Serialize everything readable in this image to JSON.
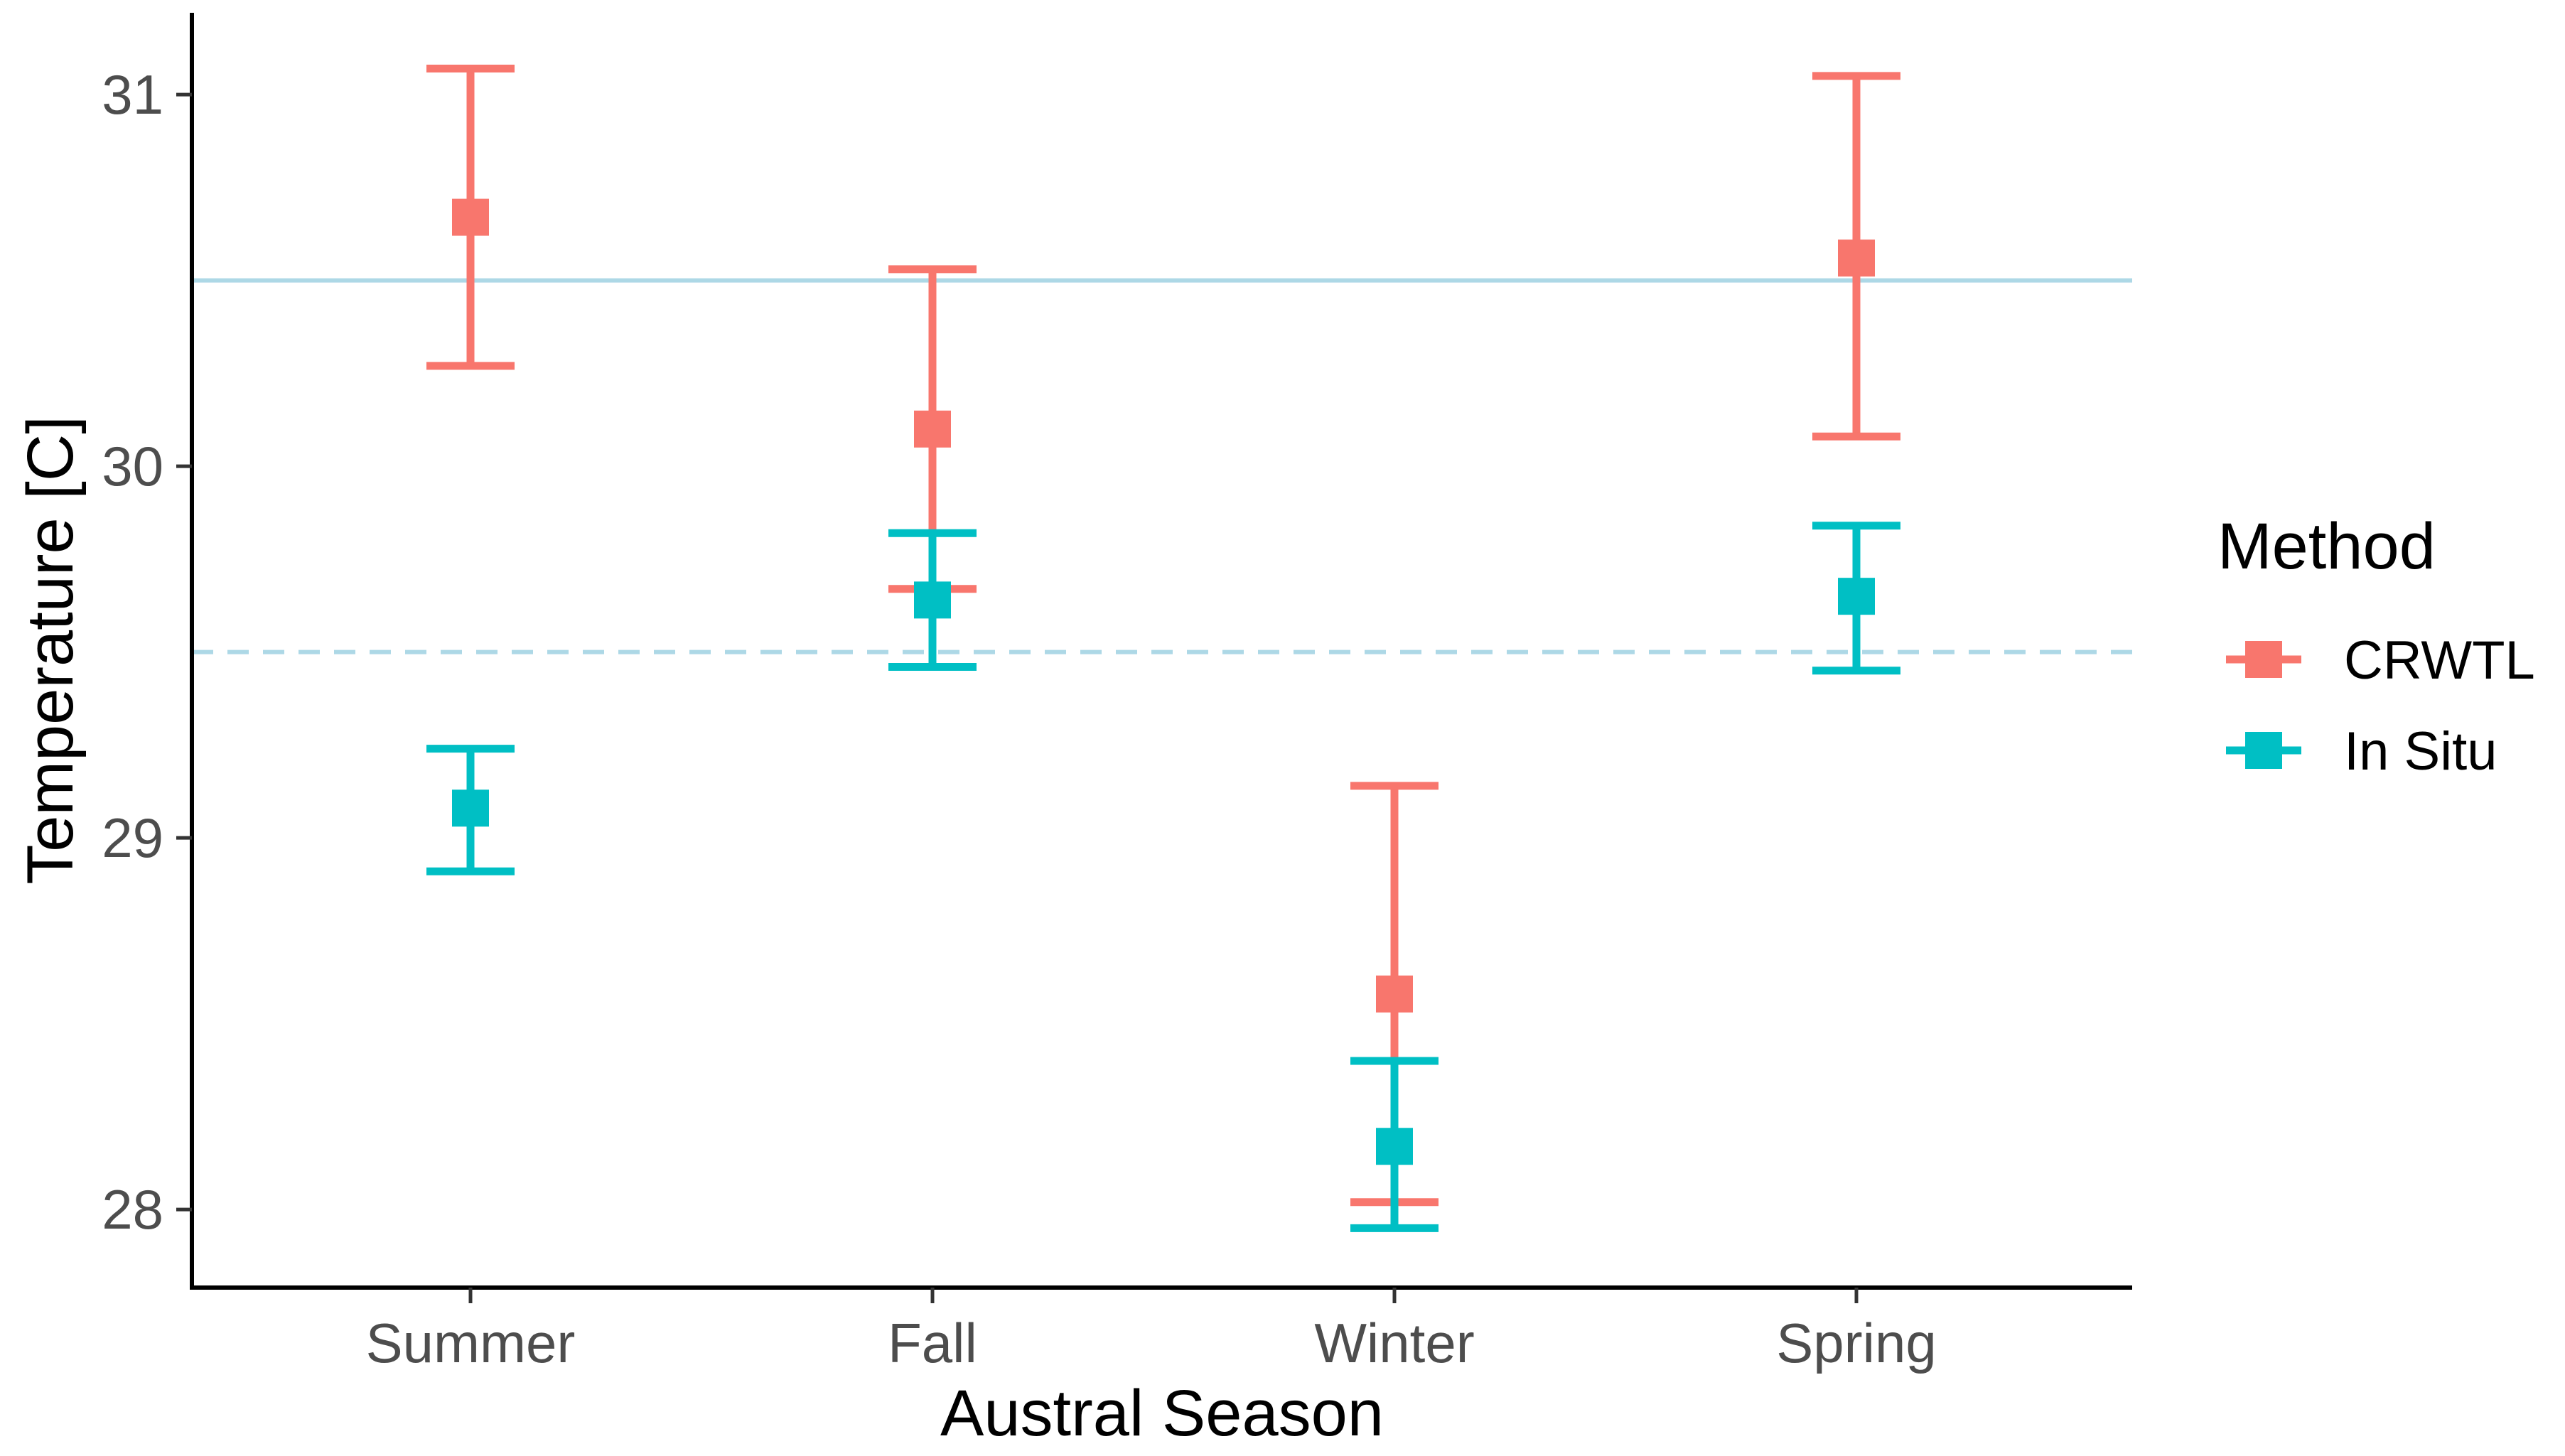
{
  "chart_data": {
    "type": "scatter",
    "subtype": "point-with-error-bars",
    "xlabel": "Austral Season",
    "ylabel": "Temperature [C]",
    "categories": [
      "Summer",
      "Fall",
      "Winter",
      "Spring"
    ],
    "ylim": [
      27.79,
      31.22
    ],
    "yticks": [
      28,
      29,
      30,
      31
    ],
    "ytick_labels": [
      "28",
      "29",
      "30",
      "31"
    ],
    "legend": {
      "title": "Method",
      "position": "right"
    },
    "reference_lines": [
      {
        "value": 30.5,
        "style": "solid",
        "color": "#ADD8E6"
      },
      {
        "value": 29.5,
        "style": "dashed",
        "color": "#ADD8E6"
      }
    ],
    "series": [
      {
        "name": "CRWTL",
        "color": "#F8766D",
        "values": [
          30.67,
          30.1,
          28.58,
          30.56
        ],
        "lower": [
          30.27,
          29.67,
          28.02,
          30.08
        ],
        "upper": [
          31.07,
          30.53,
          29.14,
          31.05
        ]
      },
      {
        "name": "In Situ",
        "color": "#00BFC4",
        "values": [
          29.08,
          29.64,
          28.17,
          29.65
        ],
        "lower": [
          28.91,
          29.46,
          27.95,
          29.45
        ],
        "upper": [
          29.24,
          29.82,
          28.4,
          29.84
        ]
      }
    ]
  }
}
